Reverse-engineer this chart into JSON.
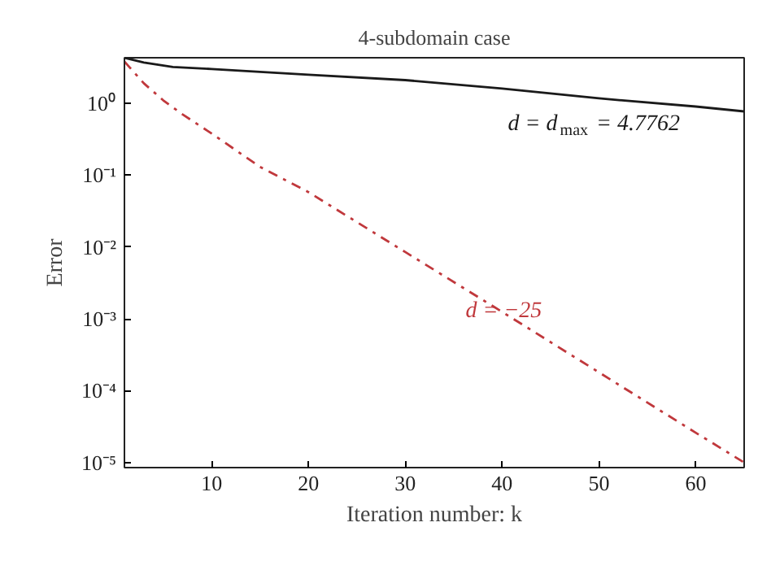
{
  "chart_data": {
    "type": "line",
    "title": "4-subdomain case",
    "xlabel": "Iteration number: k",
    "ylabel": "Error",
    "log": "y",
    "xlim": [
      1,
      65
    ],
    "xticks": [
      10,
      20,
      30,
      40,
      50,
      60
    ],
    "ylim": [
      8.5e-06,
      4.3
    ],
    "yticks": [
      {
        "value": 1,
        "label": "10⁰"
      },
      {
        "value": 0.1,
        "label": "10⁻¹"
      },
      {
        "value": 0.01,
        "label": "10⁻²"
      },
      {
        "value": 0.001,
        "label": "10⁻³"
      },
      {
        "value": 0.0001,
        "label": "10⁻⁴"
      },
      {
        "value": 1e-05,
        "label": "10⁻⁵"
      }
    ],
    "grid": false,
    "series": [
      {
        "name": "d = d$_{max}$ = 4.7762",
        "color": "#1a1a1a",
        "line_style": "solid",
        "x": [
          1,
          3,
          6,
          10,
          20,
          30,
          40,
          50,
          60,
          65
        ],
        "values": [
          4.3,
          3.7,
          3.2,
          3.0,
          2.5,
          2.1,
          1.6,
          1.17,
          0.9,
          0.77
        ]
      },
      {
        "name": "d = −25",
        "color": "#c0383c",
        "line_style": "dashdot",
        "x": [
          1,
          3,
          5,
          7,
          10,
          15,
          20,
          30,
          40,
          50,
          60,
          65
        ],
        "values": [
          3.8,
          1.9,
          1.1,
          0.7,
          0.38,
          0.13,
          0.058,
          0.0085,
          0.00125,
          0.00018,
          2.6e-05,
          1e-05
        ]
      }
    ],
    "legend": false
  }
}
